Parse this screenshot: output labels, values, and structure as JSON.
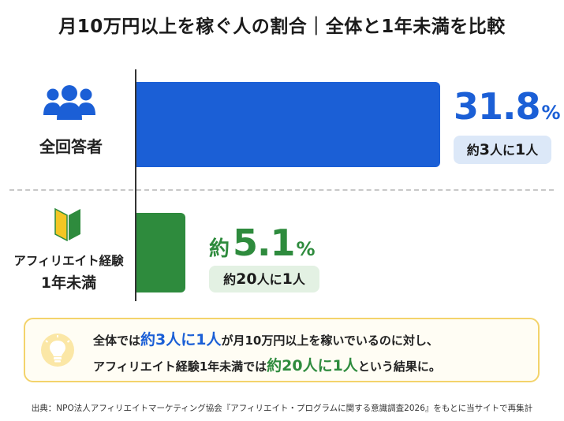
{
  "title": "月10万円以上を稼ぐ人の割合｜全体と1年未満を比較",
  "colors": {
    "blue": "#1b5fd6",
    "green": "#2e8b3d",
    "blue_pill": "#dce8f8",
    "green_pill": "#e3f1e3"
  },
  "icons": {
    "all_respondents": "people-group-icon",
    "beginner": "beginner-mark-icon",
    "summary": "lightbulb-icon"
  },
  "chart_data": {
    "type": "bar",
    "orientation": "horizontal",
    "title": "月10万円以上を稼ぐ人の割合｜全体と1年未満を比較",
    "categories": [
      "全回答者",
      "アフィリエイト経験1年未満"
    ],
    "values": [
      31.8,
      5.1
    ],
    "unit": "%",
    "colors": [
      "#1b5fd6",
      "#2e8b3d"
    ],
    "value_labels": [
      "31.8",
      "5.1"
    ],
    "ratio_labels": [
      "約3人に1人",
      "約20人に1人"
    ],
    "xlim": [
      0,
      31.8
    ]
  },
  "rows": [
    {
      "label_line1": "全回答者",
      "label_line2": "",
      "value_text": "31.8",
      "prefix": "",
      "unit": "%",
      "pill_pre": "約",
      "pill_num": "3",
      "pill_mid": "人に",
      "pill_num2": "1",
      "pill_post": "人"
    },
    {
      "label_line1": "アフィリエイト経験",
      "label_line2": "1年未満",
      "value_text": "5.1",
      "prefix": "約",
      "unit": "%",
      "pill_pre": "約",
      "pill_num": "20",
      "pill_mid": "人に",
      "pill_num2": "1",
      "pill_post": "人"
    }
  ],
  "summary": {
    "line1_a": "全体では",
    "line1_hl": "約3人に1人",
    "line1_b": "が月10万円以上を稼いでいるのに対し、",
    "line2_a": "アフィリエイト経験1年未満では",
    "line2_hl": "約20人に1人",
    "line2_b": "という結果に。"
  },
  "source": "出典：NPO法人アフィリエイトマーケティング協会『アフィリエイト・プログラムに関する意識調査2026』をもとに当サイトで再集計"
}
